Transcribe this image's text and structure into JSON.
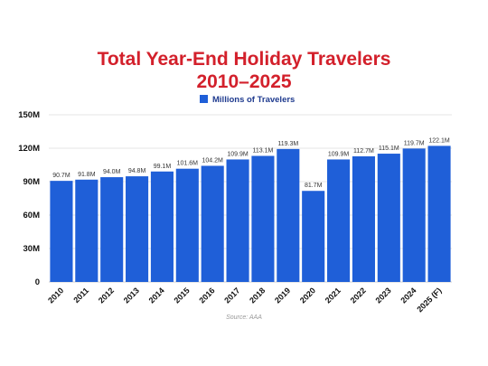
{
  "chart_data": {
    "type": "bar",
    "title_line1": "Total Year-End Holiday Travelers",
    "title_line2": "2010–2025",
    "legend": "Millions of Travelers",
    "source": "Source: AAA",
    "categories": [
      "2010",
      "2011",
      "2012",
      "2013",
      "2014",
      "2015",
      "2016",
      "2017",
      "2018",
      "2019",
      "2020",
      "2021",
      "2022",
      "2023",
      "2024",
      "2025 (F)"
    ],
    "values": [
      90.7,
      91.8,
      94.0,
      94.8,
      99.1,
      101.6,
      104.2,
      109.9,
      113.1,
      119.3,
      81.7,
      109.9,
      112.7,
      115.1,
      119.7,
      122.1
    ],
    "value_labels": [
      "90.7M",
      "91.8M",
      "94.0M",
      "94.8M",
      "99.1M",
      "101.6M",
      "104.2M",
      "109.9M",
      "113.1M",
      "119.3M",
      "81.7M",
      "109.9M",
      "112.7M",
      "115.1M",
      "119.7M",
      "122.1M"
    ],
    "y_ticks": [
      0,
      30,
      60,
      90,
      120,
      150
    ],
    "y_tick_labels": [
      "0",
      "30M",
      "60M",
      "90M",
      "120M",
      "150M"
    ],
    "ylim": [
      0,
      150
    ],
    "bar_color": "#1f5fd8",
    "title_color": "#d3202b",
    "grid": true
  }
}
